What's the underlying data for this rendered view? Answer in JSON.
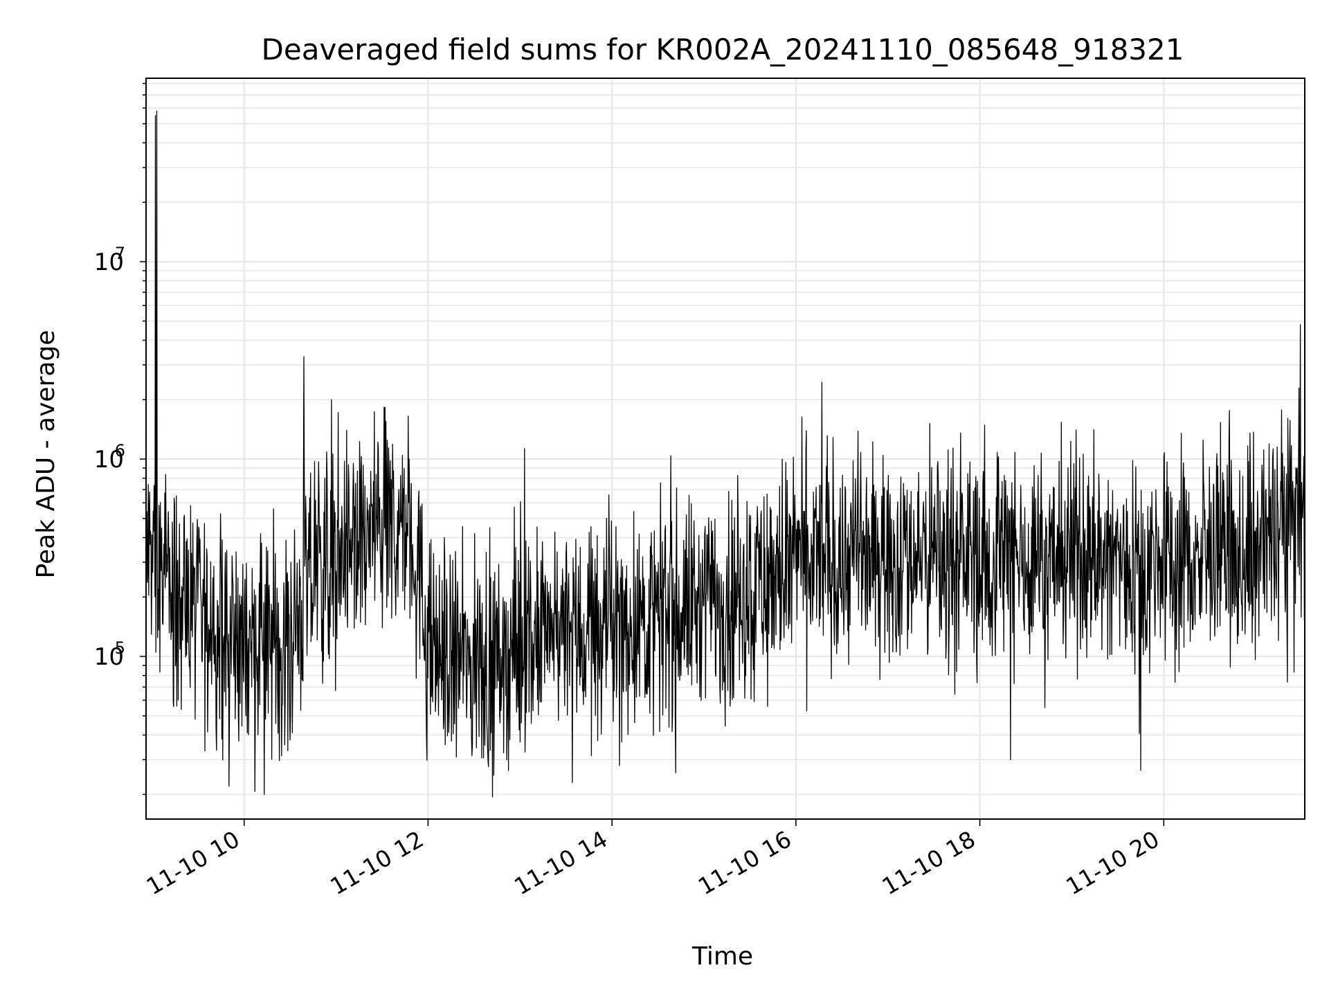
{
  "chart_data": {
    "type": "line",
    "title": "Deaveraged field sums for KR002A_20241110_085648_918321",
    "xlabel": "Time",
    "ylabel": "Peak ADU - average",
    "x_axis": {
      "kind": "datetime",
      "date": "2024-11-10",
      "range": [
        "2024-11-10 08:56",
        "2024-11-10 21:32"
      ],
      "ticks": [
        "2024-11-10 10:00",
        "2024-11-10 12:00",
        "2024-11-10 14:00",
        "2024-11-10 16:00",
        "2024-11-10 18:00",
        "2024-11-10 20:00"
      ],
      "tick_labels": [
        "11-10 10",
        "11-10 12",
        "11-10 14",
        "11-10 16",
        "11-10 18",
        "11-10 20"
      ]
    },
    "y_axis": {
      "scale": "log",
      "range": [
        15000,
        85000000
      ],
      "ticks": [
        100000,
        1000000,
        10000000
      ],
      "tick_labels": [
        {
          "base": "10",
          "exp": "5"
        },
        {
          "base": "10",
          "exp": "6"
        },
        {
          "base": "10",
          "exp": "7"
        }
      ]
    },
    "grid": true,
    "line_color": "#000000",
    "series": [
      {
        "points": [
          [
            "2024-11-10 08:56",
            350000
          ],
          [
            "2024-11-10 09:00",
            280000
          ],
          [
            "2024-11-10 09:30",
            160000
          ],
          [
            "2024-11-10 10:00",
            115000
          ],
          [
            "2024-11-10 10:30",
            120000
          ],
          [
            "2024-11-10 10:45",
            260000
          ],
          [
            "2024-11-10 11:00",
            330000
          ],
          [
            "2024-11-10 11:30",
            450000
          ],
          [
            "2024-11-10 11:50",
            420000
          ],
          [
            "2024-11-10 12:00",
            110000
          ],
          [
            "2024-11-10 12:30",
            90000
          ],
          [
            "2024-11-10 13:00",
            110000
          ],
          [
            "2024-11-10 13:30",
            130000
          ],
          [
            "2024-11-10 14:00",
            145000
          ],
          [
            "2024-11-10 14:30",
            160000
          ],
          [
            "2024-11-10 15:00",
            190000
          ],
          [
            "2024-11-10 15:30",
            220000
          ],
          [
            "2024-11-10 16:00",
            300000
          ],
          [
            "2024-11-10 17:00",
            330000
          ],
          [
            "2024-11-10 18:00",
            330000
          ],
          [
            "2024-11-10 19:00",
            320000
          ],
          [
            "2024-11-10 20:00",
            300000
          ],
          [
            "2024-11-10 21:00",
            330000
          ],
          [
            "2024-11-10 21:15",
            500000
          ],
          [
            "2024-11-10 21:32",
            470000
          ]
        ],
        "spikes": [
          [
            "2024-11-10 09:02",
            55000000
          ],
          [
            "2024-11-10 09:03",
            58000000
          ],
          [
            "2024-11-10 10:39",
            3300000
          ],
          [
            "2024-11-10 10:57",
            2000000
          ],
          [
            "2024-11-10 11:47",
            1650000
          ],
          [
            "2024-11-10 13:03",
            1130000
          ],
          [
            "2024-11-10 16:17",
            2450000
          ],
          [
            "2024-11-10 18:23",
            1080000
          ],
          [
            "2024-11-10 21:14",
            1150000
          ],
          [
            "2024-11-10 21:29",
            4800000
          ]
        ],
        "dips": [
          [
            "2024-11-10 09:50",
            22000
          ],
          [
            "2024-11-10 10:13",
            20000
          ],
          [
            "2024-11-10 12:43",
            25000
          ],
          [
            "2024-11-10 13:34",
            23000
          ],
          [
            "2024-11-10 14:05",
            28000
          ],
          [
            "2024-11-10 18:20",
            30000
          ],
          [
            "2024-11-10 19:45",
            26500
          ]
        ],
        "noise_amplitude_decades": 0.55,
        "sample_count": 2600
      }
    ]
  }
}
